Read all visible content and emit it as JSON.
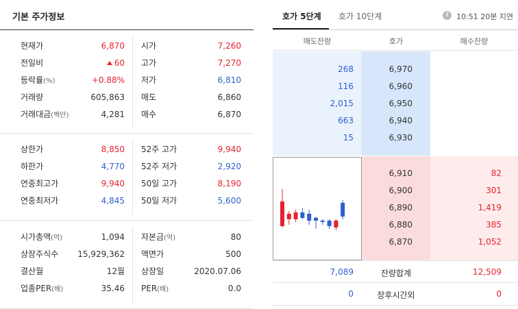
{
  "left": {
    "title": "기본 주가정보",
    "section1": [
      {
        "l1": "현재가",
        "l1s": "",
        "v1": "6,870",
        "v1c": "red",
        "v1tri": false,
        "l2": "시가",
        "l2s": "",
        "v2": "7,260",
        "v2c": "red"
      },
      {
        "l1": "전일비",
        "l1s": "",
        "v1": "60",
        "v1c": "red",
        "v1tri": true,
        "l2": "고가",
        "l2s": "",
        "v2": "7,270",
        "v2c": "red"
      },
      {
        "l1": "등락률",
        "l1s": "(%)",
        "v1": "+0.88%",
        "v1c": "red",
        "v1tri": false,
        "l2": "저가",
        "l2s": "",
        "v2": "6,810",
        "v2c": "blue"
      },
      {
        "l1": "거래량",
        "l1s": "",
        "v1": "605,863",
        "v1c": "",
        "v1tri": false,
        "l2": "매도",
        "l2s": "",
        "v2": "6,860",
        "v2c": ""
      },
      {
        "l1": "거래대금",
        "l1s": "(백만)",
        "v1": "4,281",
        "v1c": "",
        "v1tri": false,
        "l2": "매수",
        "l2s": "",
        "v2": "6,870",
        "v2c": ""
      }
    ],
    "section2": [
      {
        "l1": "상한가",
        "l1s": "",
        "v1": "8,850",
        "v1c": "red",
        "v1tri": false,
        "l2": "52주 고가",
        "l2s": "",
        "v2": "9,940",
        "v2c": "red"
      },
      {
        "l1": "하한가",
        "l1s": "",
        "v1": "4,770",
        "v1c": "blue",
        "v1tri": false,
        "l2": "52주 저가",
        "l2s": "",
        "v2": "2,920",
        "v2c": "blue"
      },
      {
        "l1": "연중최고가",
        "l1s": "",
        "v1": "9,940",
        "v1c": "red",
        "v1tri": false,
        "l2": "50일 고가",
        "l2s": "",
        "v2": "8,190",
        "v2c": "red"
      },
      {
        "l1": "연중최저가",
        "l1s": "",
        "v1": "4,845",
        "v1c": "blue",
        "v1tri": false,
        "l2": "50일 저가",
        "l2s": "",
        "v2": "5,600",
        "v2c": "blue"
      }
    ],
    "section3": [
      {
        "l1": "시가총액",
        "l1s": "(억)",
        "v1": "1,094",
        "v1c": "",
        "v1tri": false,
        "l2": "자본금",
        "l2s": "(억)",
        "v2": "80",
        "v2c": ""
      },
      {
        "l1": "상장주식수",
        "l1s": "",
        "v1": "15,929,362",
        "v1c": "",
        "v1tri": false,
        "l2": "액면가",
        "l2s": "",
        "v2": "500",
        "v2c": ""
      },
      {
        "l1": "결산월",
        "l1s": "",
        "v1": "12월",
        "v1c": "",
        "v1tri": false,
        "l2": "상장일",
        "l2s": "",
        "v2": "2020.07.06",
        "v2c": ""
      },
      {
        "l1": "업종PER",
        "l1s": "(배)",
        "v1": "35.46",
        "v1c": "",
        "v1tri": false,
        "l2": "PER",
        "l2s": "(배)",
        "v2": "0.0",
        "v2c": ""
      }
    ]
  },
  "right": {
    "tabs": [
      "호가 5단계",
      "호가 10단계"
    ],
    "time": "10:51 20분 지연",
    "info_icon": "info-icon",
    "headers": [
      "매도잔량",
      "호가",
      "매수잔량"
    ],
    "asks": [
      {
        "vol": "268",
        "price": "6,970"
      },
      {
        "vol": "116",
        "price": "6,960"
      },
      {
        "vol": "2,015",
        "price": "6,950"
      },
      {
        "vol": "663",
        "price": "6,940"
      },
      {
        "vol": "15",
        "price": "6,930"
      }
    ],
    "bids": [
      {
        "price": "6,910",
        "vol": "82"
      },
      {
        "price": "6,900",
        "vol": "301"
      },
      {
        "price": "6,890",
        "vol": "1,419"
      },
      {
        "price": "6,880",
        "vol": "385"
      },
      {
        "price": "6,870",
        "vol": "1,052"
      }
    ],
    "summary": {
      "ask_total": "7,089",
      "label": "잔량합계",
      "bid_total": "12,509"
    },
    "after_hours": {
      "ask": "0",
      "label": "장후시간외",
      "bid": "0"
    },
    "mini_chart": {
      "candles": [
        {
          "o": 7180,
          "h": 7270,
          "l": 6990,
          "c": 7000,
          "dir": "up"
        },
        {
          "o": 7050,
          "h": 7110,
          "l": 7010,
          "c": 7090,
          "dir": "up"
        },
        {
          "o": 7050,
          "h": 7120,
          "l": 7030,
          "c": 7100,
          "dir": "up"
        },
        {
          "o": 7100,
          "h": 7130,
          "l": 7050,
          "c": 7060,
          "dir": "down"
        },
        {
          "o": 7090,
          "h": 7120,
          "l": 7010,
          "c": 7040,
          "dir": "down"
        },
        {
          "o": 7060,
          "h": 7070,
          "l": 6980,
          "c": 7040,
          "dir": "down"
        },
        {
          "o": 7040,
          "h": 7050,
          "l": 7010,
          "c": 7030,
          "dir": "down"
        },
        {
          "o": 7040,
          "h": 7050,
          "l": 6980,
          "c": 7000,
          "dir": "down"
        },
        {
          "o": 6990,
          "h": 7050,
          "l": 6970,
          "c": 7040,
          "dir": "up"
        },
        {
          "o": 7170,
          "h": 7190,
          "l": 7050,
          "c": 7070,
          "dir": "down"
        }
      ],
      "up_color": "#e5222e",
      "down_color": "#2d5fcf"
    }
  }
}
